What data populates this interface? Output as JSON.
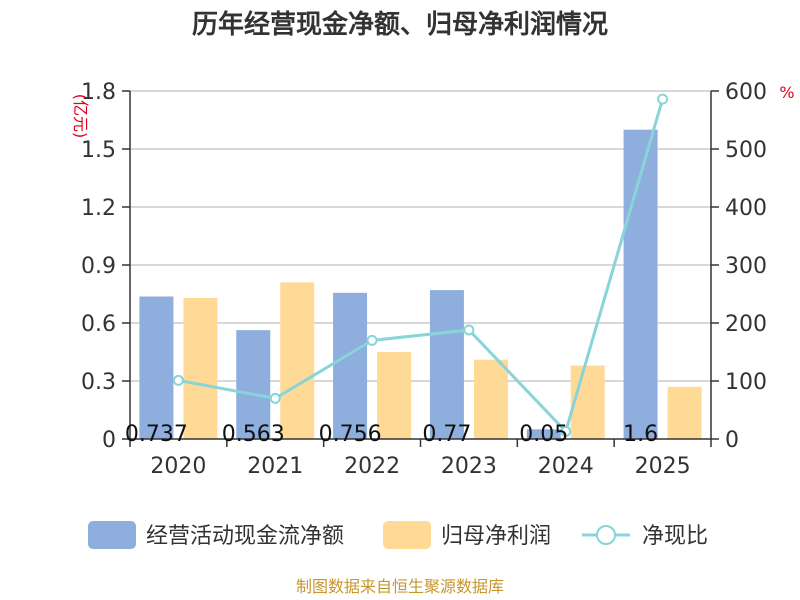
{
  "chart_data": {
    "type": "bar",
    "title": "历年经营现金净额、归母净利润情况",
    "categories": [
      "2020",
      "2021",
      "2022",
      "2023",
      "2024",
      "2025"
    ],
    "left_axis": {
      "unit": "(亿元)",
      "ylim": [
        0,
        1.8
      ],
      "ticks": [
        0,
        0.3,
        0.6,
        0.9,
        1.2,
        1.5,
        1.8
      ],
      "tick_labels": [
        "0",
        "0.3",
        "0.6",
        "0.9",
        "1.2",
        "1.5",
        "1.8"
      ]
    },
    "right_axis": {
      "unit": "%",
      "ylim": [
        0,
        600
      ],
      "ticks": [
        0,
        100,
        200,
        300,
        400,
        500,
        600
      ],
      "tick_labels": [
        "0",
        "100",
        "200",
        "300",
        "400",
        "500",
        "600"
      ]
    },
    "series": [
      {
        "name": "经营活动现金流净额",
        "type": "bar",
        "axis": "left",
        "color": "#8eaedd",
        "values": [
          0.737,
          0.563,
          0.756,
          0.77,
          0.05,
          1.6
        ],
        "labels": [
          "0.737",
          "0.563",
          "0.756",
          "0.77",
          "0.05",
          "1.6"
        ]
      },
      {
        "name": "归母净利润",
        "type": "bar",
        "axis": "left",
        "color": "#ffd996",
        "values": [
          0.73,
          0.81,
          0.45,
          0.41,
          0.38,
          0.27
        ]
      },
      {
        "name": "净现比",
        "type": "line",
        "axis": "right",
        "color": "#88d4d8",
        "values": [
          101,
          70,
          170,
          188,
          13,
          586
        ]
      }
    ],
    "grid": true,
    "legend_position": "bottom"
  },
  "source": "制图数据来自恒生聚源数据库"
}
